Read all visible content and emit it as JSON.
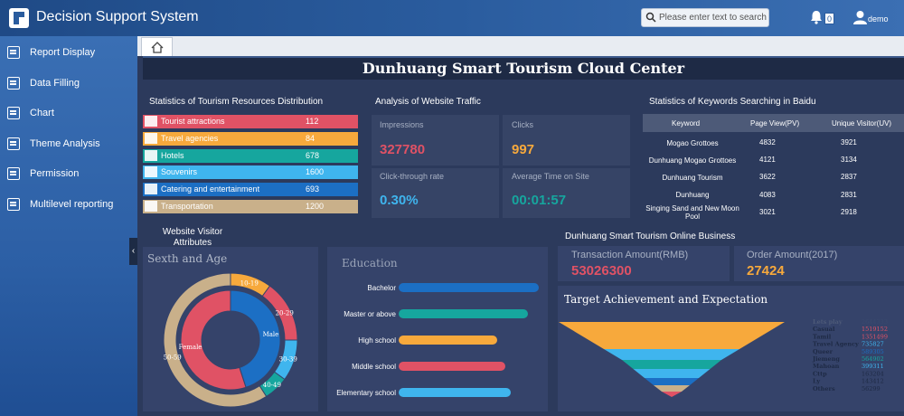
{
  "app": {
    "title": "Decision Support System",
    "search_placeholder": "Please enter text to search",
    "notifications": "0",
    "user": "demo"
  },
  "sidebar": {
    "items": [
      {
        "label": "Report Display",
        "icon": "report-icon"
      },
      {
        "label": "Data Filling",
        "icon": "pen-icon"
      },
      {
        "label": "Chart",
        "icon": "chart-icon"
      },
      {
        "label": "Theme Analysis",
        "icon": "theme-icon"
      },
      {
        "label": "Permission",
        "icon": "permission-icon"
      },
      {
        "label": "Multilevel reporting",
        "icon": "multilevel-icon"
      }
    ]
  },
  "dashboard": {
    "title": "Dunhuang Smart Tourism Cloud Center",
    "resources": {
      "title": "Statistics of Tourism Resources Distribution",
      "rows": [
        {
          "name": "Tourist attractions",
          "value": "112",
          "color": "#e05265"
        },
        {
          "name": "Travel agencies",
          "value": "84",
          "color": "#f7a93c"
        },
        {
          "name": "Hotels",
          "value": "678",
          "color": "#16a69e"
        },
        {
          "name": "Souvenirs",
          "value": "1600",
          "color": "#3fb5ee"
        },
        {
          "name": "Catering and entertainment",
          "value": "693",
          "color": "#1c6fc4"
        },
        {
          "name": "Transportation",
          "value": "1200",
          "color": "#c9b08a"
        }
      ]
    },
    "traffic": {
      "title": "Analysis of Website Traffic",
      "impressions_label": "Impressions",
      "impressions": "327780",
      "clicks_label": "Clicks",
      "clicks": "997",
      "ctr_label": "Click-through rate",
      "ctr": "0.30%",
      "time_label": "Average Time on Site",
      "time": "00:01:57"
    },
    "keywords": {
      "title": "Statistics of Keywords Searching in Baidu",
      "headers": [
        "Keyword",
        "Page View(PV)",
        "Unique Visitor(UV)"
      ],
      "rows": [
        [
          "Mogao Grottoes",
          "4832",
          "3921"
        ],
        [
          "Dunhuang Mogao Grottoes",
          "4121",
          "3134"
        ],
        [
          "Dunhuang Tourism",
          "3622",
          "2837"
        ],
        [
          "Dunhuang",
          "4083",
          "2831"
        ],
        [
          "Singing Sand and New Moon Pool",
          "3021",
          "2918"
        ]
      ]
    },
    "visitor": {
      "title": "Website Visitor Attributes",
      "panel_title": "Sexth and Age"
    },
    "education": {
      "title": "Education"
    },
    "business": {
      "title": "Dunhuang Smart Tourism Online Business",
      "transaction_label": "Transaction Amount(RMB)",
      "transaction": "53026300",
      "order_label": "Order Amount(2017)",
      "order": "27424"
    },
    "target": {
      "title": "Target Achievement and Expectation"
    }
  },
  "chart_data": [
    {
      "type": "pie",
      "title": "Sexth and Age",
      "series": [
        {
          "name": "Gender",
          "labels": [
            "Male",
            "Female"
          ],
          "values": [
            45,
            55
          ],
          "colors": [
            "#1c6fc4",
            "#e05265"
          ]
        },
        {
          "name": "Age",
          "labels": [
            "10-19",
            "20-29",
            "30-39",
            "40-49",
            "50-59"
          ],
          "values": [
            10,
            15,
            10,
            6,
            59
          ],
          "colors": [
            "#f7a93c",
            "#e05265",
            "#3fb5ee",
            "#16a69e",
            "#c9b08a"
          ]
        }
      ]
    },
    {
      "type": "bar",
      "title": "Education",
      "categories": [
        "Bachelor",
        "Master or above",
        "High school",
        "Middle school",
        "Elementary school"
      ],
      "values": [
        100,
        92,
        70,
        76,
        80
      ],
      "colors": [
        "#1c6fc4",
        "#16a69e",
        "#f7a93c",
        "#e05265",
        "#3fb5ee"
      ],
      "xlim": [
        0,
        100
      ]
    },
    {
      "type": "funnel",
      "title": "Target Achievement and Expectation",
      "categories": [
        "Lets play",
        "Casual",
        "Tamil",
        "Travel Agency",
        "Queer",
        "Jiemeng",
        "Mahoan",
        "Cttp",
        "Ly",
        "Others"
      ],
      "values": [
        2644333,
        1519152,
        1351499,
        735827,
        589305,
        564902,
        399311,
        163204,
        143412,
        56299
      ],
      "colors": [
        "#3a4a6e",
        "#e05265",
        "#e05265",
        "#3fb5ee",
        "#1c6fc4",
        "#16a69e",
        "#3fb5ee",
        "#1e2a45",
        "#1e2a45",
        "#1e2a45"
      ]
    }
  ]
}
